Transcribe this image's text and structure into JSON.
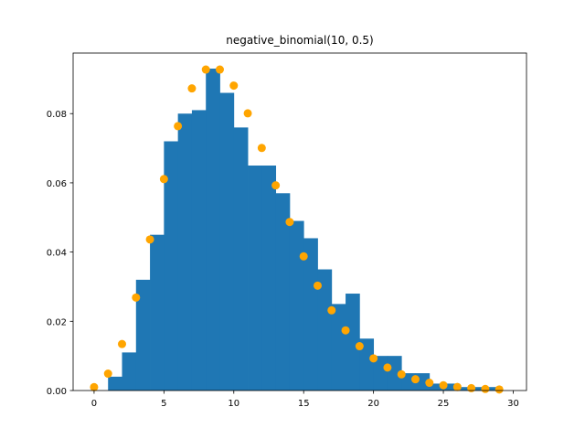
{
  "chart_data": {
    "type": "bar",
    "title": "negative_binomial(10, 0.5)",
    "xlabel": "",
    "ylabel": "",
    "xlim": [
      -1.5,
      30.95
    ],
    "ylim": [
      0,
      0.0975
    ],
    "x_ticks": [
      0,
      5,
      10,
      15,
      20,
      25,
      30
    ],
    "y_ticks": [
      0.0,
      0.02,
      0.04,
      0.06,
      0.08
    ],
    "y_tick_labels": [
      "0.00",
      "0.02",
      "0.04",
      "0.06",
      "0.08"
    ],
    "grid": false,
    "colors": {
      "bars": "#1f77b4",
      "points": "#ffa500"
    },
    "series": [
      {
        "type": "histogram",
        "bin_edges": [
          0,
          1,
          2,
          3,
          4,
          5,
          6,
          7,
          8,
          9,
          10,
          11,
          12,
          13,
          14,
          15,
          16,
          17,
          18,
          19,
          20,
          21,
          22,
          23,
          24,
          25,
          26,
          27,
          28,
          29
        ],
        "values": [
          0.0,
          0.004,
          0.011,
          0.032,
          0.045,
          0.072,
          0.08,
          0.081,
          0.093,
          0.086,
          0.076,
          0.065,
          0.065,
          0.057,
          0.049,
          0.044,
          0.035,
          0.025,
          0.028,
          0.015,
          0.01,
          0.01,
          0.005,
          0.005,
          0.002,
          0.002,
          0.001,
          0.001,
          0.001
        ]
      },
      {
        "type": "scatter",
        "x": [
          0,
          1,
          2,
          3,
          4,
          5,
          6,
          7,
          8,
          9,
          10,
          11,
          12,
          13,
          14,
          15,
          16,
          17,
          18,
          19,
          20,
          21,
          22,
          23,
          24,
          25,
          26,
          27,
          28,
          29
        ],
        "values": [
          0.00098,
          0.00488,
          0.01343,
          0.02686,
          0.04364,
          0.0611,
          0.07638,
          0.08729,
          0.09274,
          0.09274,
          0.0881,
          0.08009,
          0.07007,
          0.05928,
          0.0487,
          0.03877,
          0.03029,
          0.02317,
          0.01738,
          0.01281,
          0.00929,
          0.00664,
          0.00468,
          0.00326,
          0.00224,
          0.00153,
          0.00103,
          0.00069,
          0.00046,
          0.0003
        ]
      }
    ]
  }
}
